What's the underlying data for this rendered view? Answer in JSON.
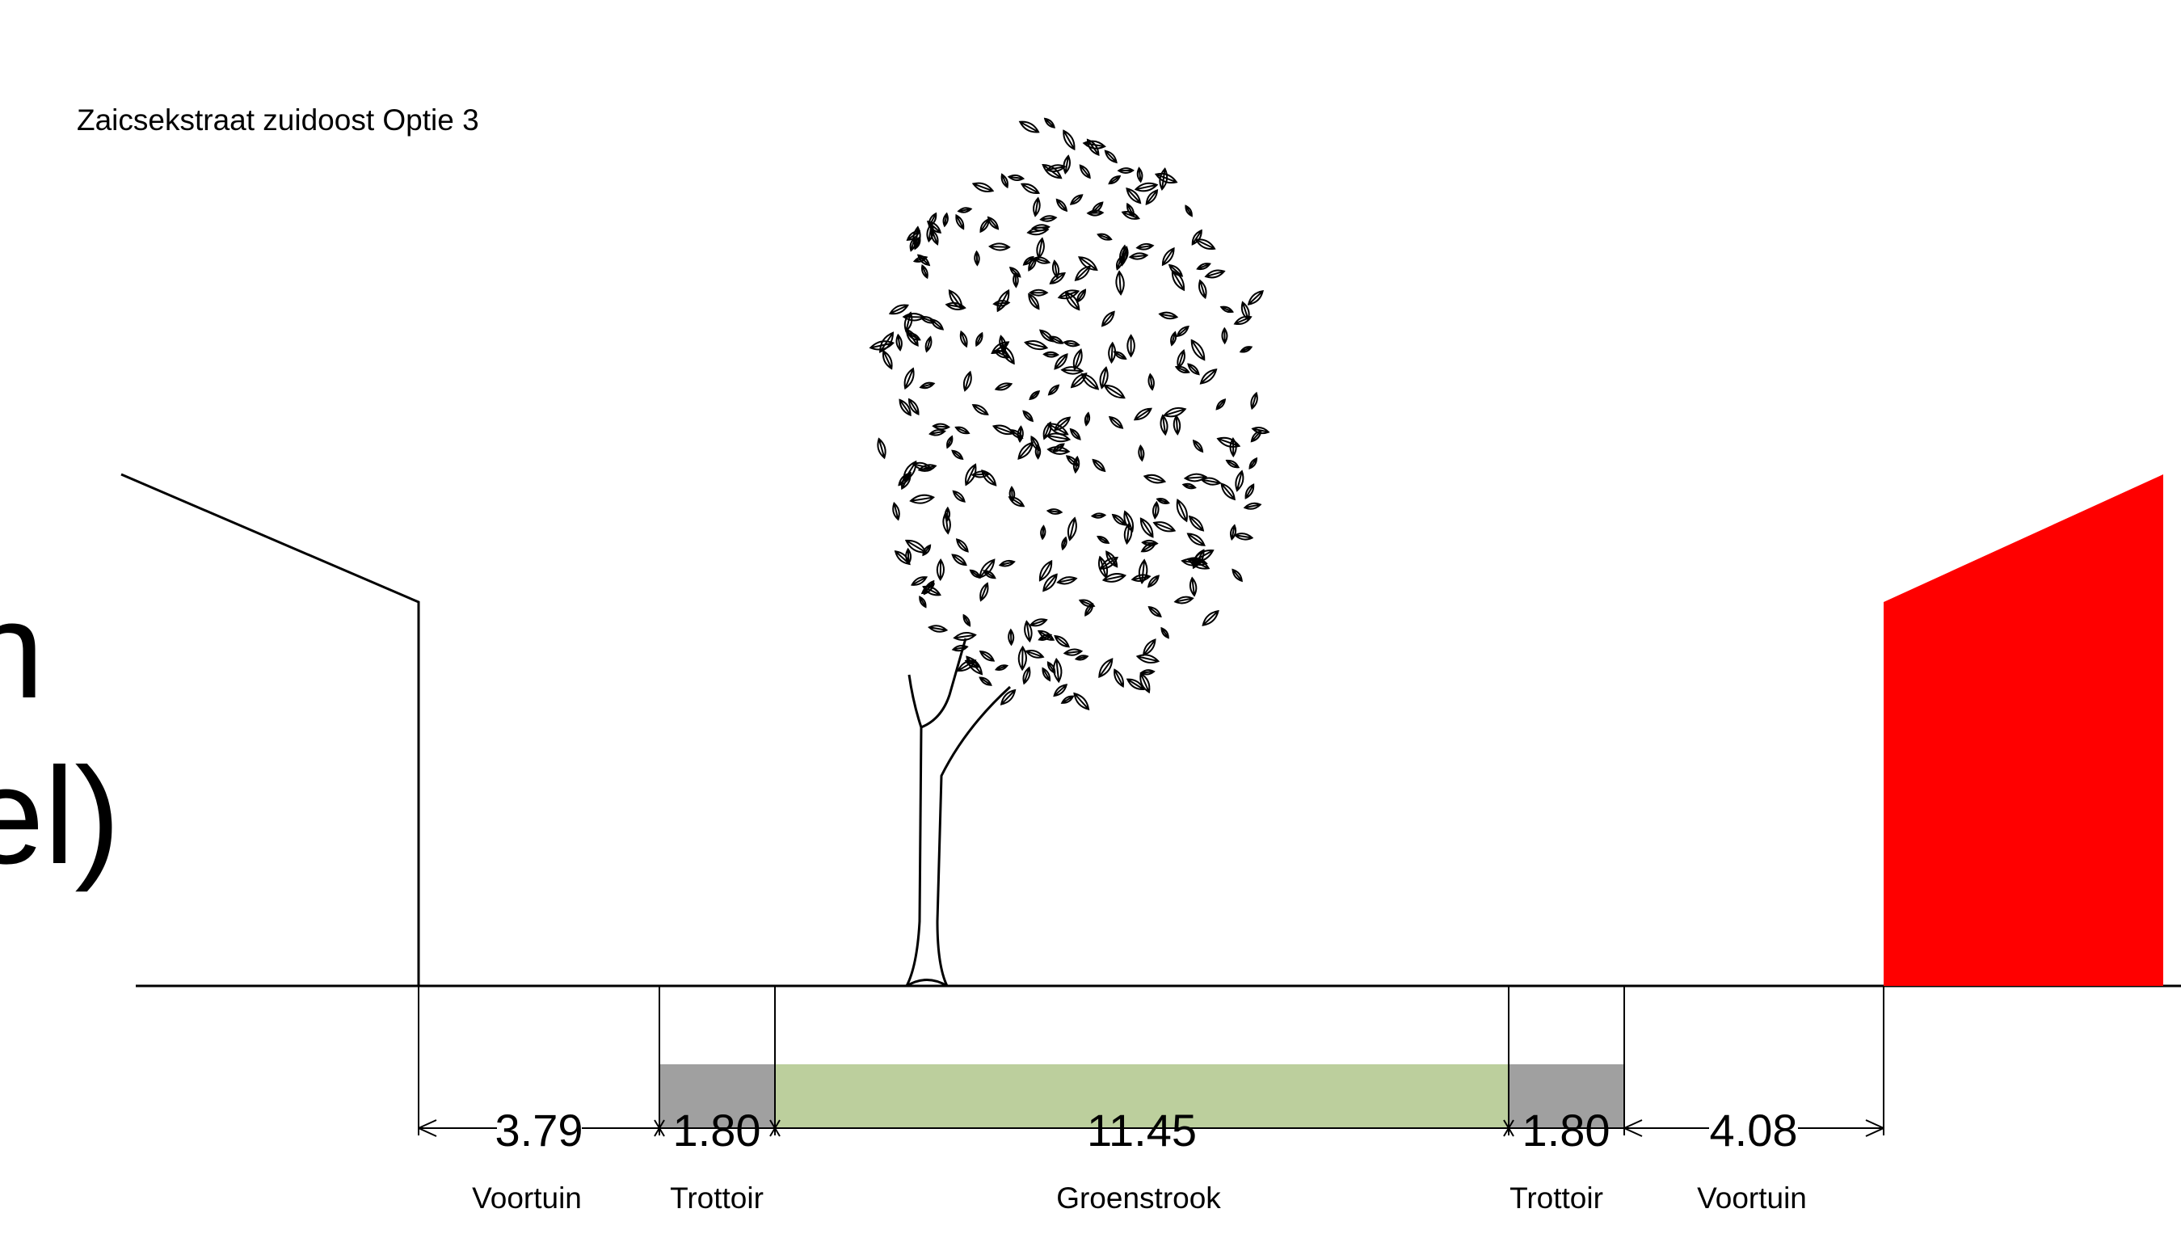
{
  "title": "Zaicsekstraat zuidoost Optie 3",
  "cropped_text": [
    "n",
    "el)"
  ],
  "colors": {
    "trottoir": "#a0a0a0",
    "groenstrook": "#bccf9d",
    "building_right": "#ff0000",
    "line": "#000000"
  },
  "icons": [
    "tree-icon"
  ],
  "segments": [
    {
      "name": "voortuin-left",
      "value": "3.79",
      "label": "Voortuin"
    },
    {
      "name": "trottoir-left",
      "value": "1.80",
      "label": "Trottoir"
    },
    {
      "name": "groenstrook",
      "value": "11.45",
      "label": "Groenstrook"
    },
    {
      "name": "trottoir-right",
      "value": "1.80",
      "label": "Trottoir"
    },
    {
      "name": "voortuin-right",
      "value": "4.08",
      "label": "Voortuin"
    }
  ]
}
